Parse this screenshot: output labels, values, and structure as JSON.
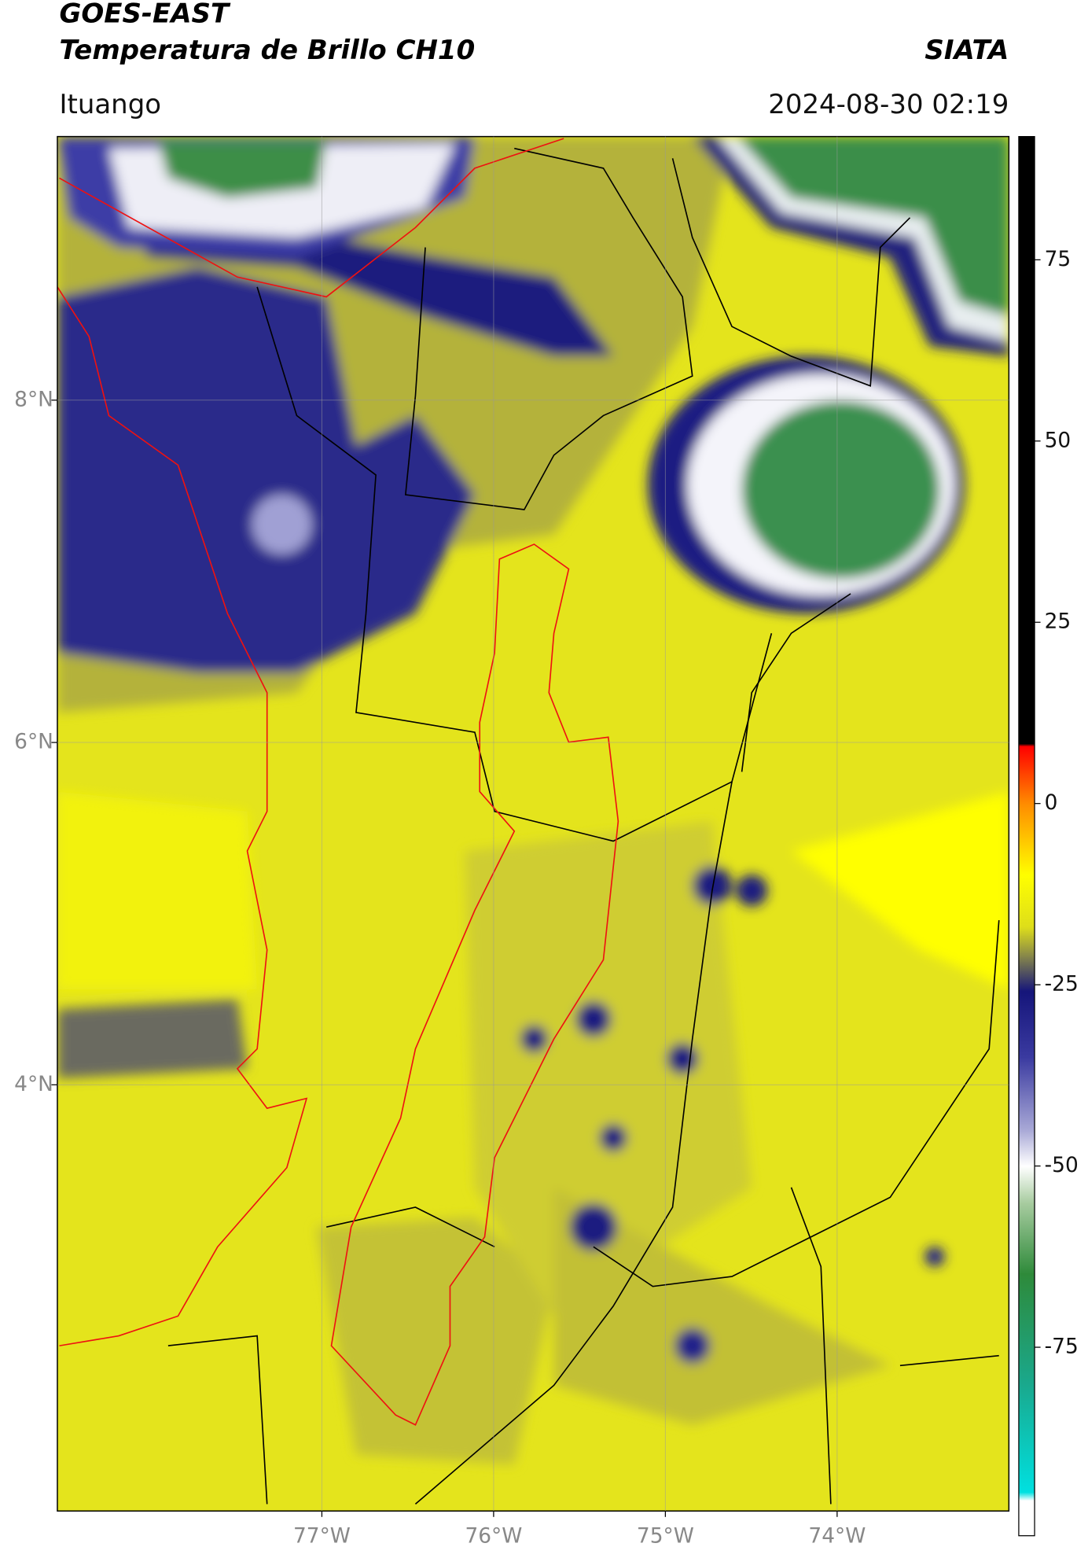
{
  "header": {
    "title": "GOES-EAST",
    "subtitle": "Temperatura de Brillo CH10",
    "source": "SIATA",
    "location": "Ituango",
    "timestamp": "2024-08-30 02:19"
  },
  "map": {
    "xlim": [
      -78.54,
      -73.0
    ],
    "ylim": [
      1.51,
      9.54
    ],
    "xticks": [
      {
        "value": -77,
        "label": "77°W"
      },
      {
        "value": -76,
        "label": "76°W"
      },
      {
        "value": -75,
        "label": "75°W"
      },
      {
        "value": -74,
        "label": "74°W"
      }
    ],
    "yticks": [
      {
        "value": 8,
        "label": "8°N"
      },
      {
        "value": 6,
        "label": "6°N"
      },
      {
        "value": 4,
        "label": "4°N"
      }
    ],
    "grid": true
  },
  "colorbar": {
    "lim": [
      -101,
      92
    ],
    "ticks": [
      75,
      50,
      25,
      0,
      -25,
      -50,
      -75
    ]
  }
}
